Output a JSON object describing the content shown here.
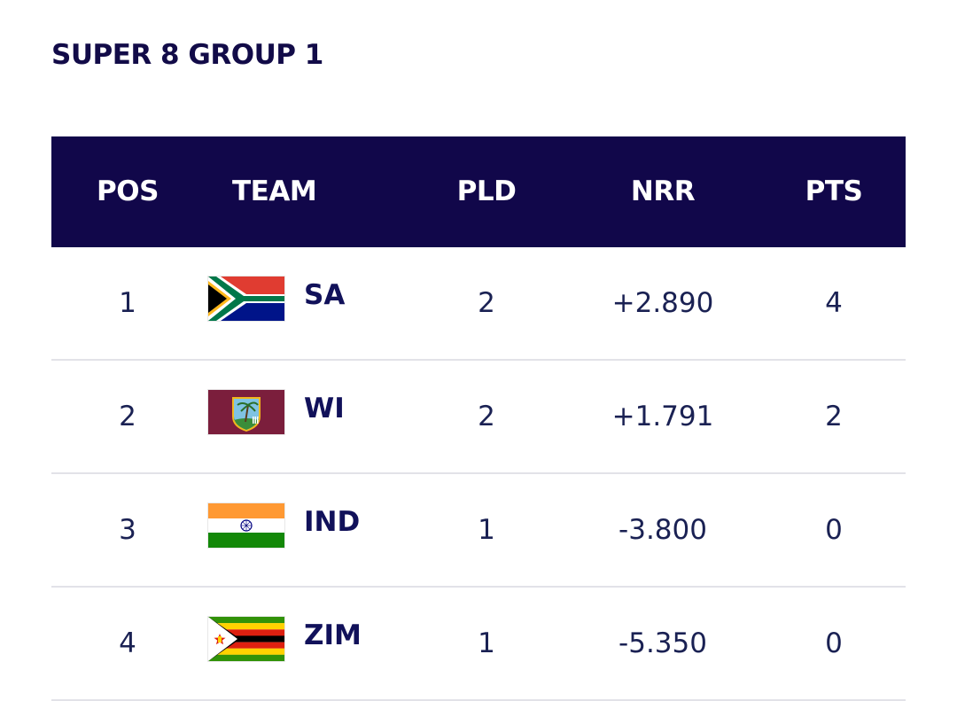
{
  "title": "SUPER 8 GROUP 1",
  "columns": {
    "pos": "POS",
    "team": "TEAM",
    "pld": "PLD",
    "nrr": "NRR",
    "pts": "PTS"
  },
  "rows": [
    {
      "pos": "1",
      "team": "SA",
      "flag": "south-africa-flag",
      "pld": "2",
      "nrr": "+2.890",
      "pts": "4"
    },
    {
      "pos": "2",
      "team": "WI",
      "flag": "west-indies-flag",
      "pld": "2",
      "nrr": "+1.791",
      "pts": "2"
    },
    {
      "pos": "3",
      "team": "IND",
      "flag": "india-flag",
      "pld": "1",
      "nrr": "-3.800",
      "pts": "0"
    },
    {
      "pos": "4",
      "team": "ZIM",
      "flag": "zimbabwe-flag",
      "pld": "1",
      "nrr": "-5.350",
      "pts": "0"
    }
  ],
  "colors": {
    "header_bg": "#11074a",
    "title": "#120b48",
    "text": "#1a2153",
    "divider": "#e2e2e8"
  }
}
